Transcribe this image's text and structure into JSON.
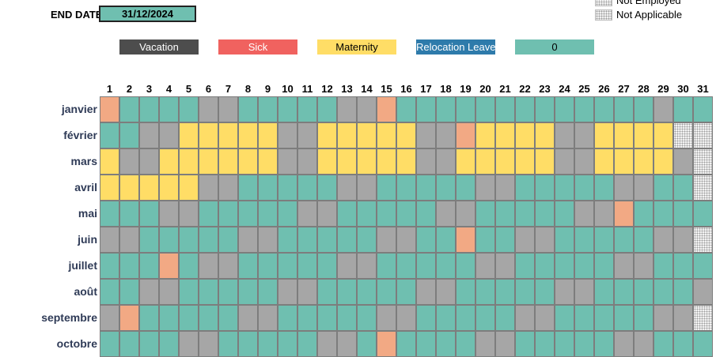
{
  "end_date": {
    "label": "END DATE",
    "value": "31/12/2024"
  },
  "legend_top_right": [
    {
      "label": "Not Employed",
      "swatch": "dotted-pattern"
    },
    {
      "label": "Not Applicable",
      "swatch": "dotted-pattern"
    }
  ],
  "legend": [
    {
      "label": "Vacation",
      "bg": "#4d4d4d",
      "fg": "#ffffff"
    },
    {
      "label": "Sick",
      "bg": "#f0625f",
      "fg": "#ffffff"
    },
    {
      "label": "Maternity",
      "bg": "#ffdd66",
      "fg": "#000000"
    },
    {
      "label": "Relocation Leave",
      "bg": "#2e7bab",
      "fg": "#ffffff"
    },
    {
      "label": "0",
      "bg": "#6fbfb0",
      "fg": "#000000"
    }
  ],
  "state_colors": {
    "a": "#6fbfb0",
    "w": "#a6a6a6",
    "y": "#ffdd66",
    "s": "#f2a984",
    "n": "dotted-pattern"
  },
  "days": [
    "1",
    "2",
    "3",
    "4",
    "5",
    "6",
    "7",
    "8",
    "9",
    "10",
    "11",
    "12",
    "13",
    "14",
    "15",
    "16",
    "17",
    "18",
    "19",
    "20",
    "21",
    "22",
    "23",
    "24",
    "25",
    "26",
    "27",
    "28",
    "29",
    "30",
    "31"
  ],
  "months": [
    {
      "name": "janvier",
      "cells": "saaaawwaaaaawwsaaaaaaaaaaaaawaa"
    },
    {
      "name": "février",
      "cells": "aawwyyyyywwyyyyywwsyyyywwyyyynn"
    },
    {
      "name": "mars",
      "cells": "ywwyyyyyywwyyyyywwyyyyywwyyyywn"
    },
    {
      "name": "avril",
      "cells": "yyyyywwaaaaawwaaaaawwaaaaawwaan"
    },
    {
      "name": "mai",
      "cells": "aaawwaaaaawwaaaaawwaaaaawwsaaaa"
    },
    {
      "name": "juin",
      "cells": "wwaaaaawwaaaaawwaasaawwaaaaawwn"
    },
    {
      "name": "juillet",
      "cells": "aaasawwaaaaawwaaaaawwaaaaawwaaa"
    },
    {
      "name": "août",
      "cells": "aawwaaaaawwaaaaawwaaaaawwaaaaaw"
    },
    {
      "name": "septembre",
      "cells": "wsaaaaawwaaaaawwaaaaawwaaaaawwn"
    },
    {
      "name": "octobre",
      "cells": "aaaawwaaaaawwasaaaawwaaaaawwaaa"
    }
  ]
}
